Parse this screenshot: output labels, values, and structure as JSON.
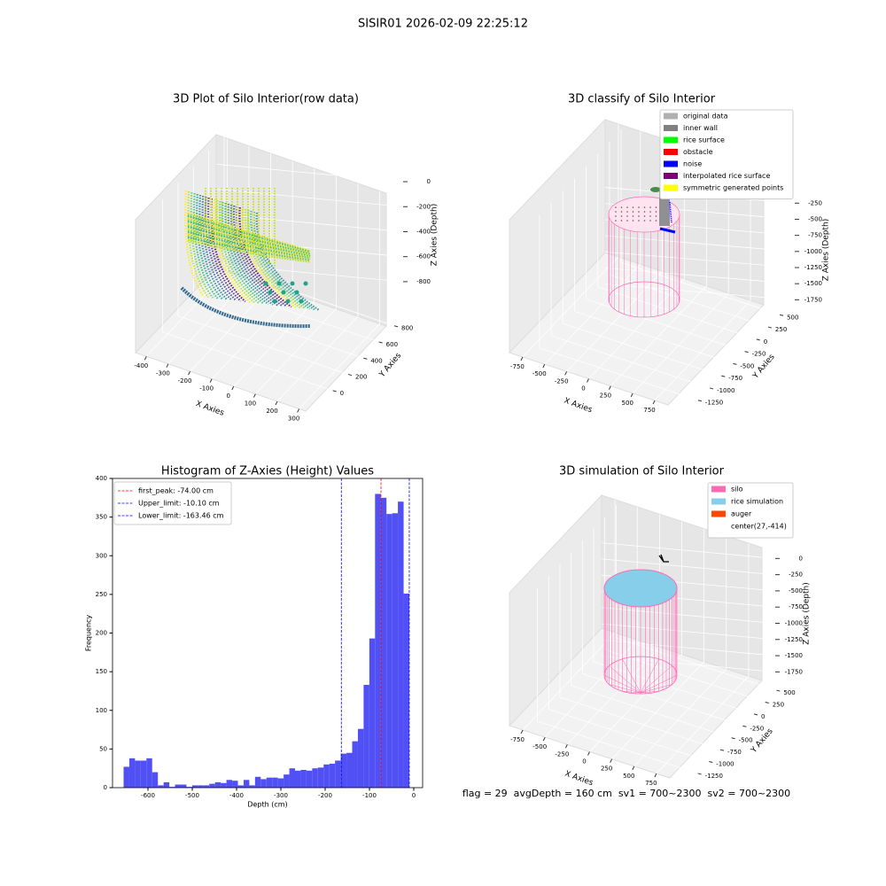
{
  "suptitle": "SISIR01 2026-02-09 22:25:12",
  "chart_data": [
    {
      "type": "scatter3d",
      "title": "3D Plot of Silo Interior(row data)",
      "xlabel": "X Axies",
      "ylabel": "Y Axies",
      "zlabel": "Z Axies (Depth)",
      "xlim": [
        -450,
        330
      ],
      "xticks": [
        -400,
        -300,
        -200,
        -100,
        0,
        100,
        200,
        300
      ],
      "ylim": [
        -100,
        950
      ],
      "yticks": [
        0,
        200,
        400,
        600,
        800
      ],
      "zlim": [
        -900,
        50
      ],
      "zticks": [
        0,
        -200,
        -400,
        -600,
        -800
      ],
      "grid": true
    },
    {
      "type": "scatter3d",
      "title": "3D classify of Silo Interior",
      "xlabel": "X Axies",
      "ylabel": "Y Axies",
      "zlabel": "Z Axies (Depth)",
      "xlim": [
        -900,
        900
      ],
      "xticks": [
        -750,
        -500,
        -250,
        0,
        250,
        500,
        750
      ],
      "ylim": [
        -1400,
        650
      ],
      "yticks": [
        500,
        250,
        0,
        -250,
        -500,
        -750,
        -1000,
        -1250
      ],
      "zlim": [
        -1800,
        -150
      ],
      "zticks": [
        -250,
        -500,
        -750,
        -1000,
        -1250,
        -1500,
        -1750
      ],
      "grid": true,
      "legend_loc": "upper right",
      "legend": [
        {
          "name": "original data",
          "color": "#b0b0b0"
        },
        {
          "name": "inner wall",
          "color": "#808080"
        },
        {
          "name": "rice surface",
          "color": "#00ff00"
        },
        {
          "name": "obstacle",
          "color": "#ff0000"
        },
        {
          "name": "noise",
          "color": "#0000ff"
        },
        {
          "name": "interpolated rice surface",
          "color": "#800080"
        },
        {
          "name": "symmetric generated points",
          "color": "#ffff00"
        }
      ]
    },
    {
      "type": "histogram",
      "title": "Histogram of Z-Axies (Height) Values",
      "xlabel": "Depth (cm)",
      "ylabel": "Frequency",
      "color": "#5050f5",
      "bins": [
        -655,
        -642.1,
        -629.2,
        -616.3,
        -603.4,
        -590.5,
        -577.6,
        -564.7,
        -551.8,
        -538.9,
        -526,
        -513.1,
        -500.2,
        -487.3,
        -474.4,
        -461.5,
        -448.6,
        -435.7,
        -422.8,
        -409.9,
        -397,
        -384.1,
        -371.2,
        -358.3,
        -345.4,
        -332.5,
        -319.6,
        -306.7,
        -293.8,
        -280.9,
        -268,
        -255.1,
        -242.2,
        -229.3,
        -216.4,
        -203.5,
        -190.6,
        -177.7,
        -164.8,
        -151.9,
        -139,
        -126.1,
        -113.2,
        -100.3,
        -87.4,
        -74.5,
        -61.6,
        -48.7,
        -35.8,
        -22.9,
        -10
      ],
      "counts": [
        27,
        38,
        35,
        35,
        38,
        20,
        3,
        7,
        1,
        4,
        4,
        1,
        3,
        3,
        3,
        5,
        7,
        6,
        10,
        9,
        3,
        10,
        3,
        14,
        11,
        13,
        13,
        12,
        17,
        25,
        22,
        23,
        22,
        25,
        26,
        30,
        31,
        35,
        44,
        45,
        60,
        76,
        133,
        193,
        380,
        375,
        354,
        355,
        370,
        251
      ],
      "xlim": [
        -680,
        20
      ],
      "xticks": [
        -600,
        -500,
        -400,
        -300,
        -200,
        -100,
        0
      ],
      "ylim": [
        0,
        400
      ],
      "yticks": [
        0,
        50,
        100,
        150,
        200,
        250,
        300,
        350,
        400
      ],
      "legend_loc": "upper left",
      "vlines": [
        {
          "name": "first_peak: -74.00 cm",
          "value": -74,
          "color": "#ff0000"
        },
        {
          "name": "Upper_limit: -10.10 cm",
          "value": -10.1,
          "color": "#0000ff"
        },
        {
          "name": "Lower_limit: -163.46 cm",
          "value": -163.46,
          "color": "#0000ff"
        }
      ]
    },
    {
      "type": "scatter3d",
      "title": "3D simulation of Silo Interior",
      "xlabel": "X Axies",
      "ylabel": "Y Axies",
      "zlabel": "Z Axies (Depth)",
      "xlim": [
        -900,
        900
      ],
      "xticks": [
        -750,
        -500,
        -250,
        0,
        250,
        500,
        750
      ],
      "ylim": [
        -1400,
        650
      ],
      "yticks": [
        500,
        250,
        0,
        -250,
        -500,
        -750,
        -1000,
        -1250
      ],
      "zlim": [
        -1800,
        100
      ],
      "zticks": [
        0,
        -250,
        -500,
        -750,
        -1000,
        -1250,
        -1500,
        -1750
      ],
      "grid": true,
      "legend_loc": "upper right",
      "legend": [
        {
          "name": "silo",
          "color": "#ff69b4"
        },
        {
          "name": "rice simulation",
          "color": "#87ceeb"
        },
        {
          "name": "auger",
          "color": "#ff4500"
        },
        {
          "name": "center(27,-414)"
        }
      ]
    }
  ],
  "status_text": "flag = 29  avgDepth = 160 cm  sv1 = 700~2300  sv2 = 700~2300"
}
